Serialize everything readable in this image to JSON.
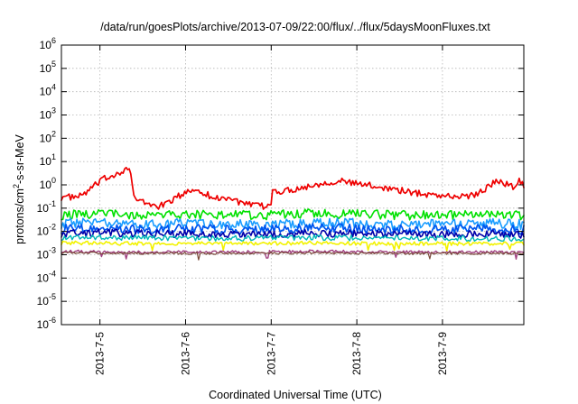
{
  "chart_data": {
    "type": "line",
    "title": "/data/run/goesPlots/archive/2013-07-09/22:00/flux/../flux/5daysMoonFluxes.txt",
    "xlabel": "Coordinated Universal Time (UTC)",
    "ylabel_parts": [
      "protons/cm",
      "2",
      "-s-sr-MeV"
    ],
    "x_ticks": [
      "2013-7-5",
      "2013-7-6",
      "2013-7-7",
      "2013-7-8",
      "2013-7-9"
    ],
    "x_tick_positions_days": [
      1,
      2,
      3,
      4,
      5
    ],
    "xlim_days": [
      0.55,
      5.95
    ],
    "y_scale": "log",
    "ylim": [
      1e-06,
      1000000.0
    ],
    "y_tick_labels": [
      {
        "base": "10",
        "exp": "-6"
      },
      {
        "base": "10",
        "exp": "-5"
      },
      {
        "base": "10",
        "exp": "-4"
      },
      {
        "base": "10",
        "exp": "-3"
      },
      {
        "base": "10",
        "exp": "-2"
      },
      {
        "base": "10",
        "exp": "-1"
      },
      {
        "base": "10",
        "exp": "0"
      },
      {
        "base": "10",
        "exp": "1"
      },
      {
        "base": "10",
        "exp": "2"
      },
      {
        "base": "10",
        "exp": "3"
      },
      {
        "base": "10",
        "exp": "4"
      },
      {
        "base": "10",
        "exp": "5"
      },
      {
        "base": "10",
        "exp": "6"
      }
    ],
    "grid": true,
    "series": [
      {
        "color": "#ee0000",
        "width": 1.7,
        "anchors": [
          [
            0.55,
            0.3
          ],
          [
            0.75,
            0.3
          ],
          [
            0.85,
            0.5
          ],
          [
            0.95,
            1.0
          ],
          [
            1.05,
            1.8
          ],
          [
            1.15,
            2.6
          ],
          [
            1.25,
            3.8
          ],
          [
            1.3,
            5.0
          ],
          [
            1.35,
            4.8
          ],
          [
            1.4,
            0.25
          ],
          [
            1.5,
            0.18
          ],
          [
            1.6,
            0.14
          ],
          [
            1.7,
            0.12
          ],
          [
            1.8,
            0.18
          ],
          [
            1.9,
            0.3
          ],
          [
            2.0,
            0.45
          ],
          [
            2.1,
            0.65
          ],
          [
            2.2,
            0.5
          ],
          [
            2.3,
            0.3
          ],
          [
            2.4,
            0.25
          ],
          [
            2.5,
            0.3
          ],
          [
            2.6,
            0.2
          ],
          [
            2.7,
            0.14
          ],
          [
            2.8,
            0.13
          ],
          [
            2.9,
            0.12
          ],
          [
            3.0,
            0.12
          ],
          [
            3.02,
            0.9
          ],
          [
            3.05,
            0.6
          ],
          [
            3.1,
            0.5
          ],
          [
            3.2,
            0.6
          ],
          [
            3.4,
            0.8
          ],
          [
            3.6,
            1.2
          ],
          [
            3.8,
            1.5
          ],
          [
            4.0,
            1.1
          ],
          [
            4.2,
            0.9
          ],
          [
            4.4,
            0.7
          ],
          [
            4.6,
            0.5
          ],
          [
            4.8,
            0.4
          ],
          [
            5.0,
            0.35
          ],
          [
            5.2,
            0.3
          ],
          [
            5.4,
            0.4
          ],
          [
            5.55,
            0.9
          ],
          [
            5.65,
            1.6
          ],
          [
            5.75,
            1.1
          ],
          [
            5.85,
            0.7
          ],
          [
            5.9,
            1.8
          ],
          [
            5.95,
            0.9
          ]
        ],
        "noise": 0.14
      },
      {
        "color": "#00e000",
        "width": 1.6,
        "anchors": [
          [
            0.55,
            0.05
          ],
          [
            1.0,
            0.06
          ],
          [
            1.5,
            0.05
          ],
          [
            2.0,
            0.055
          ],
          [
            2.5,
            0.05
          ],
          [
            3.0,
            0.05
          ],
          [
            3.5,
            0.06
          ],
          [
            4.0,
            0.055
          ],
          [
            4.5,
            0.05
          ],
          [
            5.0,
            0.05
          ],
          [
            5.5,
            0.055
          ],
          [
            5.95,
            0.05
          ]
        ],
        "noise": 0.2
      },
      {
        "color": "#1a9cff",
        "width": 1.6,
        "anchors": [
          [
            0.55,
            0.022
          ],
          [
            1.0,
            0.025
          ],
          [
            1.5,
            0.02
          ],
          [
            2.0,
            0.022
          ],
          [
            2.5,
            0.02
          ],
          [
            3.0,
            0.02
          ],
          [
            3.5,
            0.024
          ],
          [
            4.0,
            0.022
          ],
          [
            4.5,
            0.02
          ],
          [
            5.0,
            0.02
          ],
          [
            5.5,
            0.022
          ],
          [
            5.95,
            0.02
          ]
        ],
        "noise": 0.22
      },
      {
        "color": "#0055ee",
        "width": 1.7,
        "anchors": [
          [
            0.55,
            0.013
          ],
          [
            1.0,
            0.014
          ],
          [
            1.5,
            0.012
          ],
          [
            2.0,
            0.013
          ],
          [
            2.5,
            0.012
          ],
          [
            3.0,
            0.012
          ],
          [
            3.5,
            0.014
          ],
          [
            4.0,
            0.013
          ],
          [
            4.5,
            0.012
          ],
          [
            5.0,
            0.012
          ],
          [
            5.5,
            0.013
          ],
          [
            5.95,
            0.012
          ]
        ],
        "noise": 0.2
      },
      {
        "color": "#0000aa",
        "width": 1.6,
        "anchors": [
          [
            0.55,
            0.008
          ],
          [
            1.0,
            0.009
          ],
          [
            1.5,
            0.008
          ],
          [
            2.0,
            0.008
          ],
          [
            2.5,
            0.0075
          ],
          [
            3.0,
            0.0075
          ],
          [
            3.5,
            0.0085
          ],
          [
            4.0,
            0.008
          ],
          [
            4.5,
            0.0075
          ],
          [
            5.0,
            0.0075
          ],
          [
            5.5,
            0.008
          ],
          [
            5.95,
            0.0075
          ]
        ],
        "noise": 0.16
      },
      {
        "color": "#00b8b8",
        "width": 1.4,
        "anchors": [
          [
            0.55,
            0.0055
          ],
          [
            1.5,
            0.0055
          ],
          [
            2.5,
            0.005
          ],
          [
            3.5,
            0.0055
          ],
          [
            4.5,
            0.005
          ],
          [
            5.95,
            0.005
          ]
        ],
        "noise": 0.12
      },
      {
        "color": "#f2f200",
        "width": 1.6,
        "anchors": [
          [
            0.55,
            0.0032
          ],
          [
            1.5,
            0.003
          ],
          [
            2.5,
            0.003
          ],
          [
            3.5,
            0.0032
          ],
          [
            4.5,
            0.003
          ],
          [
            5.95,
            0.003
          ]
        ],
        "noise": 0.08
      },
      {
        "color": "#a04080",
        "width": 1.4,
        "anchors": [
          [
            0.55,
            0.0014
          ],
          [
            1.5,
            0.0013
          ],
          [
            2.5,
            0.0013
          ],
          [
            3.5,
            0.0014
          ],
          [
            4.5,
            0.0013
          ],
          [
            5.95,
            0.0013
          ]
        ],
        "noise": 0.06
      },
      {
        "color": "#7a4a3a",
        "width": 1.2,
        "anchors": [
          [
            0.55,
            0.0012
          ],
          [
            1.5,
            0.00115
          ],
          [
            2.5,
            0.00115
          ],
          [
            3.5,
            0.0012
          ],
          [
            4.5,
            0.00115
          ],
          [
            5.95,
            0.00115
          ]
        ],
        "noise": 0.05
      }
    ]
  }
}
